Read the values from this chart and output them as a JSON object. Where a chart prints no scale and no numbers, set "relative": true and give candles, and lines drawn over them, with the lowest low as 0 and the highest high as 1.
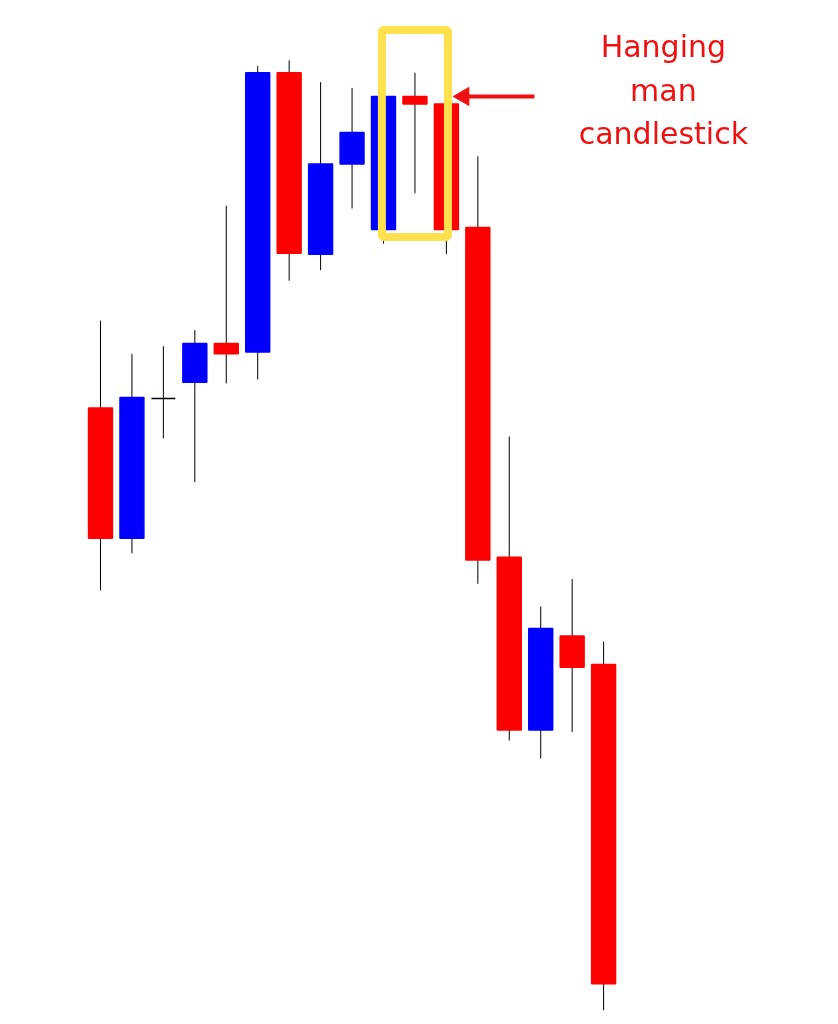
{
  "chart_data": {
    "type": "candlestick",
    "relative": true,
    "tick_labels": false,
    "grid": false,
    "categories": [
      null,
      null,
      null,
      null,
      null,
      null,
      null,
      null,
      null,
      null,
      null,
      null,
      null,
      null,
      null,
      null,
      null
    ],
    "ohlc": [
      [
        0.634,
        0.726,
        0.442,
        0.497
      ],
      [
        0.497,
        0.691,
        0.481,
        0.645
      ],
      [
        0.644,
        0.699,
        0.602,
        0.644
      ],
      [
        0.661,
        0.716,
        0.556,
        0.702
      ],
      [
        0.702,
        0.847,
        0.66,
        0.691
      ],
      [
        0.693,
        0.994,
        0.664,
        0.987
      ],
      [
        0.987,
        1.0,
        0.768,
        0.797
      ],
      [
        0.796,
        0.977,
        0.779,
        0.891
      ],
      [
        0.891,
        0.971,
        0.844,
        0.924
      ],
      [
        0.822,
        0.962,
        0.807,
        0.962
      ],
      [
        0.962,
        0.987,
        0.86,
        0.954
      ],
      [
        0.954,
        0.954,
        0.796,
        0.822
      ],
      [
        0.824,
        0.899,
        0.449,
        0.474
      ],
      [
        0.477,
        0.604,
        0.284,
        0.295
      ],
      [
        0.295,
        0.425,
        0.265,
        0.402
      ],
      [
        0.394,
        0.454,
        0.293,
        0.361
      ],
      [
        0.364,
        0.388,
        0.0,
        0.028
      ]
    ],
    "colors": [
      "#ff0000",
      "#0000ff",
      "#000000",
      "#0000ff",
      "#ff0000",
      "#0000ff",
      "#ff0000",
      "#0000ff",
      "#0000ff",
      "#0000ff",
      "#ff0000",
      "#ff0000",
      "#ff0000",
      "#ff0000",
      "#0000ff",
      "#ff0000",
      "#ff0000"
    ],
    "annotations": [
      "Hanging man candlestick"
    ]
  }
}
